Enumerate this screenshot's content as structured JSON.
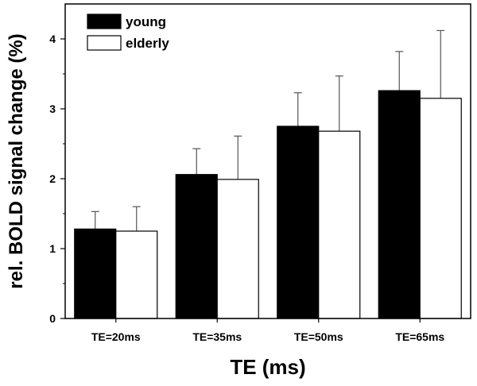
{
  "chart_data": {
    "type": "bar",
    "categories": [
      "TE=20ms",
      "TE=35ms",
      "TE=50ms",
      "TE=65ms"
    ],
    "series": [
      {
        "name": "young",
        "values": [
          1.28,
          2.06,
          2.75,
          3.26
        ],
        "errors": [
          0.25,
          0.37,
          0.48,
          0.56
        ],
        "color": "#000000"
      },
      {
        "name": "elderly",
        "values": [
          1.25,
          1.99,
          2.68,
          3.15
        ],
        "errors": [
          0.35,
          0.62,
          0.79,
          0.97
        ],
        "color": "#ffffff"
      }
    ],
    "title": "",
    "xlabel": "TE (ms)",
    "ylabel": "rel. BOLD signal change (%)",
    "ylim": [
      0,
      4.5
    ],
    "yticks": [
      0,
      1,
      2,
      3,
      4
    ],
    "grid": false,
    "legend_position": "top-left"
  }
}
